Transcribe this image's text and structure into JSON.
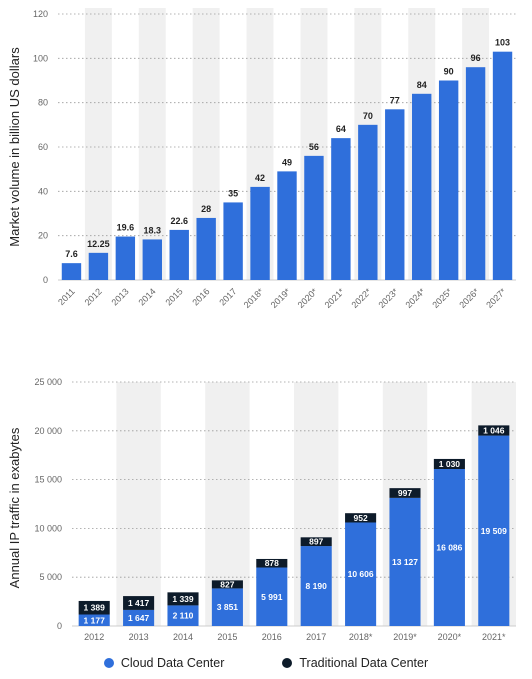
{
  "colors": {
    "cloud": "#2f6fdb",
    "traditional": "#0d1b2a",
    "band": "#f0f0f0",
    "grid": "#9a9a9a"
  },
  "chart_data": [
    {
      "type": "bar",
      "ylabel": "Market volume in billion US dollars",
      "ylim": [
        0,
        120
      ],
      "yticks": [
        0,
        20,
        40,
        60,
        80,
        100,
        120
      ],
      "categories": [
        "2011",
        "2012",
        "2013",
        "2014",
        "2015",
        "2016",
        "2017",
        "2018*",
        "2019*",
        "2020*",
        "2021*",
        "2022*",
        "2023*",
        "2024*",
        "2025*",
        "2026*",
        "2027*"
      ],
      "values": [
        7.6,
        12.25,
        19.6,
        18.3,
        22.6,
        28,
        35,
        42,
        49,
        56,
        64,
        70,
        77,
        84,
        90,
        96,
        103
      ],
      "value_labels": [
        "7.6",
        "12.25",
        "19.6",
        "18.3",
        "22.6",
        "28",
        "35",
        "42",
        "49",
        "56",
        "64",
        "70",
        "77",
        "84",
        "90",
        "96",
        "103"
      ],
      "grid": true
    },
    {
      "type": "bar",
      "stacked": true,
      "ylabel": "Annual IP traffic in exabytes",
      "ylim": [
        0,
        25000
      ],
      "yticks": [
        0,
        5000,
        10000,
        15000,
        20000,
        25000
      ],
      "ytick_labels": [
        "0",
        "5 000",
        "10 000",
        "15 000",
        "20 000",
        "25 000"
      ],
      "categories": [
        "2012",
        "2013",
        "2014",
        "2015",
        "2016",
        "2017",
        "2018*",
        "2019*",
        "2020*",
        "2021*"
      ],
      "series": [
        {
          "name": "Cloud Data Center",
          "values": [
            1177,
            1647,
            2110,
            3851,
            5991,
            8190,
            10606,
            13127,
            16086,
            19509
          ],
          "labels": [
            "1 177",
            "1 647",
            "2 110",
            "3 851",
            "5 991",
            "8 190",
            "10 606",
            "13 127",
            "16 086",
            "19 509"
          ]
        },
        {
          "name": "Traditional Data Center",
          "values": [
            1389,
            1417,
            1339,
            827,
            878,
            897,
            952,
            997,
            1030,
            1046
          ],
          "labels": [
            "1 389",
            "1 417",
            "1 339",
            "827",
            "878",
            "897",
            "952",
            "997",
            "1 030",
            "1 046"
          ]
        }
      ],
      "legend": "bottom",
      "grid": true
    }
  ]
}
